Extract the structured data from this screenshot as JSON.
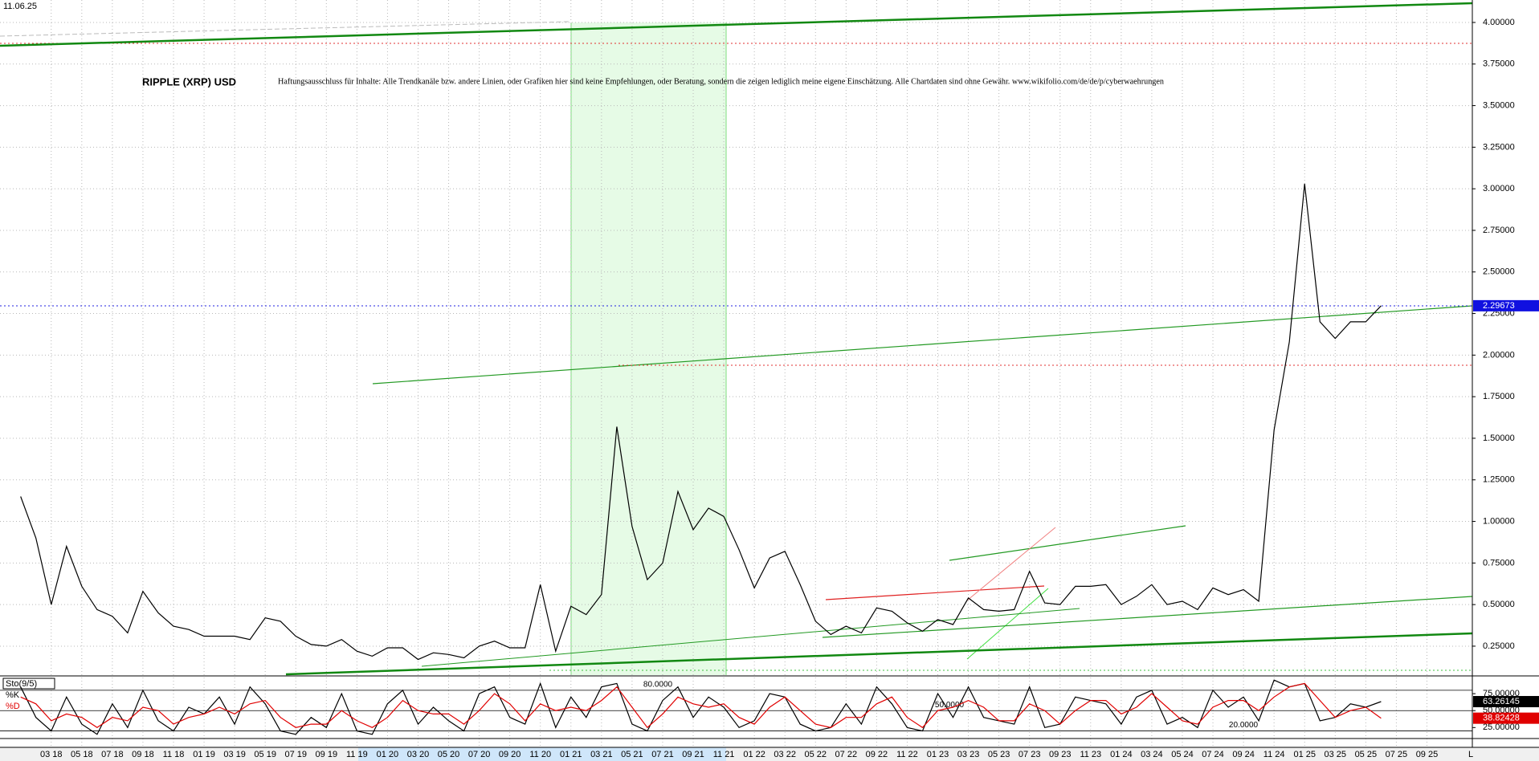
{
  "chart_data": [
    {
      "type": "line",
      "date": "11.06.25",
      "title": "RIPPLE (XRP) USD",
      "subtitle": "Haftungsausschluss für Inhalte: Alle Trendkanäle bzw. andere Linien, oder Grafiken hier sind keine Empfehlungen, oder Beratung, sondern die zeigen lediglich meine eigene Einschätzung. Alle Chartdaten sind ohne Gewähr.  www.wikifolio.com/de/de/p/cyberwaehrungen",
      "categories": [
        null,
        null,
        "03 18",
        null,
        "05 18",
        null,
        "07 18",
        null,
        "09 18",
        null,
        "11 18",
        null,
        "01 19",
        null,
        "03 19",
        null,
        "05 19",
        null,
        "07 19",
        null,
        "09 19",
        null,
        "11 19",
        null,
        "01 20",
        null,
        "03 20",
        null,
        "05 20",
        null,
        "07 20",
        null,
        "09 20",
        null,
        "11 20",
        null,
        "01 21",
        null,
        "03 21",
        null,
        "05 21",
        null,
        "07 21",
        null,
        "09 21",
        null,
        "11 21",
        null,
        "01 22",
        null,
        "03 22",
        null,
        "05 22",
        null,
        "07 22",
        null,
        "09 22",
        null,
        "11 22",
        null,
        "01 23",
        null,
        "03 23",
        null,
        "05 23",
        null,
        "07 23",
        null,
        "09 23",
        null,
        "11 23",
        null,
        "01 24",
        null,
        "03 24",
        null,
        "05 24",
        null,
        "07 24",
        null,
        "09 24",
        null,
        "11 24",
        null,
        "01 25",
        null,
        "03 25",
        null,
        "05 25",
        null,
        "07 25",
        null,
        "09 25"
      ],
      "values": [
        1.15,
        0.9,
        0.5,
        0.85,
        0.61,
        0.47,
        0.43,
        0.33,
        0.58,
        0.45,
        0.37,
        0.35,
        0.31,
        0.31,
        0.31,
        0.29,
        0.42,
        0.4,
        0.31,
        0.26,
        0.25,
        0.29,
        0.22,
        0.19,
        0.24,
        0.24,
        0.17,
        0.21,
        0.2,
        0.18,
        0.25,
        0.28,
        0.24,
        0.24,
        0.62,
        0.22,
        0.49,
        0.44,
        0.56,
        1.57,
        0.97,
        0.65,
        0.75,
        1.18,
        0.95,
        1.08,
        1.03,
        0.83,
        0.6,
        0.78,
        0.82,
        0.62,
        0.4,
        0.32,
        0.37,
        0.33,
        0.48,
        0.46,
        0.39,
        0.34,
        0.41,
        0.38,
        0.54,
        0.47,
        0.46,
        0.47,
        0.7,
        0.51,
        0.5,
        0.61,
        0.61,
        0.62,
        0.5,
        0.55,
        0.62,
        0.5,
        0.52,
        0.47,
        0.6,
        0.56,
        0.59,
        0.52,
        1.55,
        2.08,
        3.03,
        2.2,
        2.1,
        2.2,
        2.2,
        2.29673,
        null,
        null,
        null
      ],
      "color": "#000000",
      "ylim": [
        0.076,
        4.135
      ],
      "yticks": [
        {
          "value": 0.25,
          "label": "0.25000"
        },
        {
          "value": 0.5,
          "label": "0.50000"
        },
        {
          "value": 0.75,
          "label": "0.75000"
        },
        {
          "value": 1.0,
          "label": "1.00000"
        },
        {
          "value": 1.25,
          "label": "1.25000"
        },
        {
          "value": 1.5,
          "label": "1.50000"
        },
        {
          "value": 1.75,
          "label": "1.75000"
        },
        {
          "value": 2.0,
          "label": "2.00000"
        },
        {
          "value": 2.25,
          "label": "2.25000"
        },
        {
          "value": 2.5,
          "label": "2.50000"
        },
        {
          "value": 2.75,
          "label": "2.75000"
        },
        {
          "value": 3.0,
          "label": "3.00000"
        },
        {
          "value": 3.25,
          "label": "3.25000"
        },
        {
          "value": 3.5,
          "label": "3.50000"
        },
        {
          "value": 3.75,
          "label": "3.75000"
        },
        {
          "value": 4.0,
          "label": "4.00000"
        }
      ],
      "grid": true
    },
    {
      "type": "line",
      "title": "Sto(9/5)",
      "corner_label": "L",
      "series": [
        {
          "name": "%K",
          "color": "#000000",
          "values": [
            85,
            40,
            20,
            70,
            30,
            15,
            60,
            25,
            80,
            35,
            20,
            55,
            45,
            70,
            30,
            85,
            60,
            20,
            15,
            40,
            25,
            75,
            20,
            15,
            60,
            80,
            30,
            55,
            35,
            20,
            75,
            85,
            40,
            30,
            90,
            25,
            70,
            40,
            85,
            90,
            30,
            20,
            65,
            85,
            40,
            70,
            55,
            25,
            35,
            75,
            70,
            30,
            20,
            25,
            60,
            30,
            85,
            60,
            25,
            20,
            75,
            40,
            85,
            40,
            35,
            30,
            85,
            25,
            30,
            70,
            65,
            60,
            30,
            70,
            80,
            30,
            40,
            25,
            80,
            55,
            70,
            35,
            95,
            85,
            90,
            35,
            40,
            60,
            55,
            63.26145,
            null,
            null,
            null
          ]
        },
        {
          "name": "%D",
          "color": "#e00000",
          "values": [
            70,
            60,
            35,
            45,
            40,
            25,
            40,
            35,
            55,
            50,
            30,
            40,
            45,
            55,
            45,
            60,
            65,
            40,
            25,
            30,
            30,
            50,
            35,
            25,
            40,
            65,
            50,
            45,
            45,
            30,
            50,
            75,
            60,
            35,
            60,
            50,
            55,
            50,
            65,
            85,
            55,
            25,
            45,
            70,
            60,
            55,
            60,
            40,
            30,
            55,
            70,
            50,
            30,
            25,
            40,
            40,
            60,
            70,
            40,
            25,
            50,
            55,
            65,
            55,
            35,
            35,
            60,
            50,
            30,
            50,
            65,
            65,
            45,
            55,
            75,
            55,
            35,
            30,
            55,
            65,
            65,
            50,
            70,
            85,
            90,
            65,
            40,
            50,
            55,
            38.82428,
            null,
            null,
            null
          ]
        }
      ],
      "ylim": [
        10,
        100
      ],
      "yticks": [
        {
          "value": 75,
          "label": "75.00000"
        },
        {
          "value": 50,
          "label": "50.00000"
        },
        {
          "value": 25,
          "label": "25.00000"
        }
      ],
      "levels": [
        {
          "value": 80,
          "label": "80.0000"
        },
        {
          "value": 50,
          "label": "50.0000"
        },
        {
          "value": 20,
          "label": "20.0000"
        }
      ]
    }
  ]
}
